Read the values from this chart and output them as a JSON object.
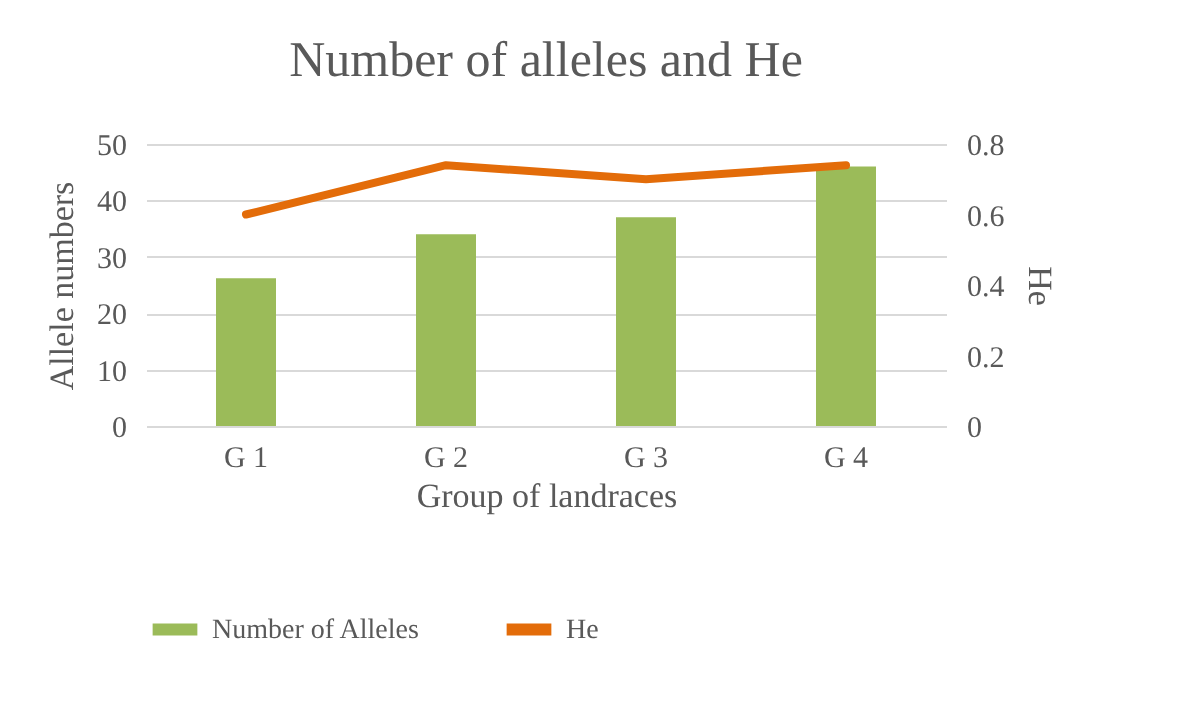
{
  "chart_data": {
    "type": "bar",
    "title": "Number of alleles and He",
    "xlabel": "Group of landraces",
    "ylabel": "Allele numbers",
    "y2label": "He",
    "categories": [
      "G 1",
      "G 2",
      "G 3",
      "G 4"
    ],
    "series": [
      {
        "name": "Number of Alleles",
        "color": "#9bbb59",
        "values": [
          26.2,
          34,
          37,
          46
        ]
      },
      {
        "name": "He",
        "type": "line",
        "axis": "y2",
        "color": "#e36c09",
        "values": [
          0.6,
          0.74,
          0.7,
          0.74
        ]
      }
    ],
    "ylim": [
      0,
      50
    ],
    "yticks": [
      0,
      10,
      20,
      30,
      40,
      50
    ],
    "y2lim": [
      0,
      0.8
    ],
    "y2ticks": [
      0,
      0.2,
      0.4,
      0.6,
      0.8
    ],
    "grid": "y",
    "legend": "bottom"
  }
}
